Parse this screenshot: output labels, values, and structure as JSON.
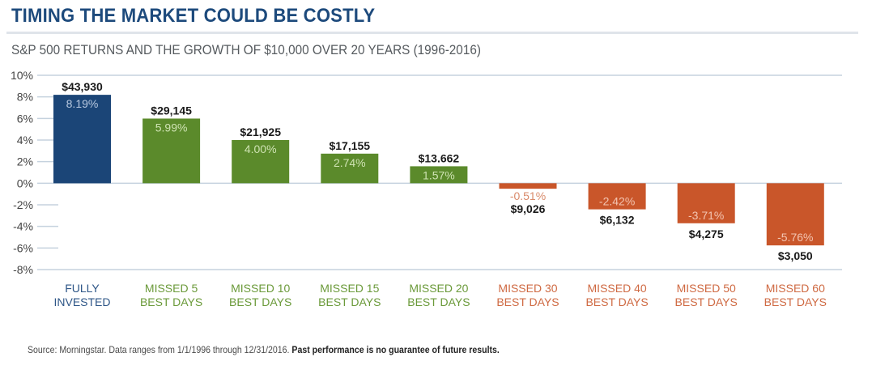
{
  "header": {
    "title": "TIMING THE MARKET COULD BE COSTLY",
    "subtitle": "S&P 500 RETURNS AND THE GROWTH OF $10,000 OVER 20 YEARS (1996-2016)"
  },
  "footer": {
    "source": "Source: Morningstar. Data ranges from 1/1/1996 through 12/31/2016.",
    "disclaimer": "Past performance is no guarantee of future results."
  },
  "colors": {
    "fully_invested": "#1b4577",
    "positive_missed": "#5b8a2b",
    "negative_missed": "#c9562a",
    "title": "#1d4a7c",
    "grid": "#c5d2de",
    "axis_text": "#444444"
  },
  "chart_data": {
    "type": "bar",
    "title": "TIMING THE MARKET COULD BE COSTLY",
    "subtitle": "S&P 500 RETURNS AND THE GROWTH OF $10,000 OVER 20 YEARS (1996-2016)",
    "xlabel": "",
    "ylabel": "",
    "ylim": [
      -8,
      10
    ],
    "yticks": [
      10,
      8,
      6,
      4,
      2,
      0,
      -2,
      -4,
      -6,
      -8
    ],
    "ytick_labels": [
      "10%",
      "8%",
      "6%",
      "4%",
      "2%",
      "0%",
      "-2%",
      "-4%",
      "-6%",
      "-8%"
    ],
    "grid": "horizontal (full lines at 10%, 0%, -8%; short ticks elsewhere)",
    "legend": "none",
    "categories": [
      [
        "FULLY",
        "INVESTED"
      ],
      [
        "MISSED 5",
        "BEST DAYS"
      ],
      [
        "MISSED 10",
        "BEST DAYS"
      ],
      [
        "MISSED 15",
        "BEST DAYS"
      ],
      [
        "MISSED 20",
        "BEST DAYS"
      ],
      [
        "MISSED 30",
        "BEST DAYS"
      ],
      [
        "MISSED 40",
        "BEST DAYS"
      ],
      [
        "MISSED 50",
        "BEST DAYS"
      ],
      [
        "MISSED 60",
        "BEST DAYS"
      ]
    ],
    "values": [
      8.19,
      5.99,
      4.0,
      2.74,
      1.57,
      -0.51,
      -2.42,
      -3.71,
      -5.76
    ],
    "value_labels": [
      "8.19%",
      "5.99%",
      "4.00%",
      "2.74%",
      "1.57%",
      "-0.51%",
      "-2.42%",
      "-3.71%",
      "-5.76%"
    ],
    "growth_of_10000": [
      43930,
      29145,
      21925,
      17155,
      13662,
      9026,
      6132,
      4275,
      3050
    ],
    "growth_labels": [
      "$43,930",
      "$29,145",
      "$21,925",
      "$17,155",
      "$13.662",
      "$9,026",
      "$6,132",
      "$4,275",
      "$3,050"
    ],
    "bar_color_groups": [
      "fully_invested",
      "positive_missed",
      "positive_missed",
      "positive_missed",
      "positive_missed",
      "negative_missed",
      "negative_missed",
      "negative_missed",
      "negative_missed"
    ]
  }
}
